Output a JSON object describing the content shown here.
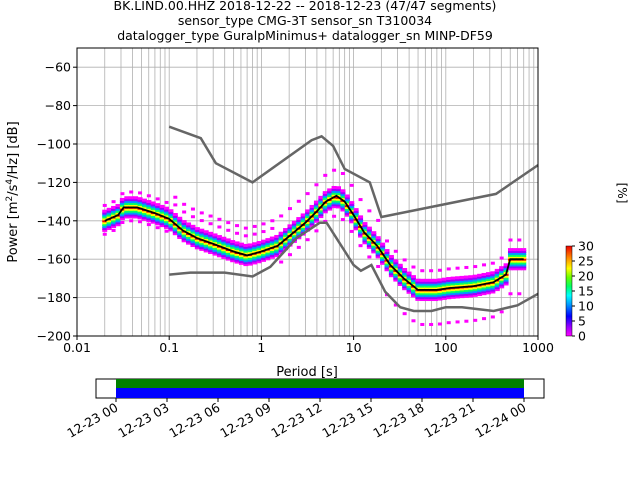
{
  "chart_data": {
    "type": "heatmap",
    "title_lines": [
      "BK.LIND.00.HHZ   2018-12-22 -- 2018-12-23  (47/47 segments)",
      "sensor_type CMG-3T sensor_sn T310034",
      "datalogger_type GuralpMinimus+ datalogger_sn MINP-DF59"
    ],
    "xlabel": "Period [s]",
    "ylabel_prefix": "Power [m",
    "ylabel_mid": "/s",
    "ylabel_mid2": "/Hz] [dB]",
    "ylabel_sup1": "2",
    "ylabel_sup2": "4",
    "xscale": "log",
    "xlim": [
      0.01,
      1000
    ],
    "ylim": [
      -200,
      -50
    ],
    "x_ticks": [
      {
        "value": 0.01,
        "label": "0.01"
      },
      {
        "value": 0.1,
        "label": "0.1"
      },
      {
        "value": 1,
        "label": "1"
      },
      {
        "value": 10,
        "label": "10"
      },
      {
        "value": 100,
        "label": "100"
      },
      {
        "value": 1000,
        "label": "1000"
      }
    ],
    "y_ticks": [
      -200,
      -180,
      -160,
      -140,
      -120,
      -100,
      -80,
      -60
    ],
    "grid": true,
    "colorbar": {
      "label": "[%]",
      "range": [
        0,
        30
      ],
      "ticks": [
        0,
        5,
        10,
        15,
        20,
        25,
        30
      ]
    },
    "noise_model_high": [
      {
        "x": 0.1,
        "y": -91
      },
      {
        "x": 0.22,
        "y": -97
      },
      {
        "x": 0.32,
        "y": -110
      },
      {
        "x": 0.8,
        "y": -120
      },
      {
        "x": 3.5,
        "y": -98
      },
      {
        "x": 4.5,
        "y": -96
      },
      {
        "x": 6.0,
        "y": -101
      },
      {
        "x": 8.0,
        "y": -113
      },
      {
        "x": 15,
        "y": -120
      },
      {
        "x": 20,
        "y": -138
      },
      {
        "x": 350,
        "y": -126
      },
      {
        "x": 1000,
        "y": -111
      }
    ],
    "noise_model_low": [
      {
        "x": 0.1,
        "y": -168
      },
      {
        "x": 0.17,
        "y": -167
      },
      {
        "x": 0.4,
        "y": -167
      },
      {
        "x": 0.8,
        "y": -169
      },
      {
        "x": 1.25,
        "y": -164
      },
      {
        "x": 2.4,
        "y": -149
      },
      {
        "x": 4.3,
        "y": -141
      },
      {
        "x": 5.1,
        "y": -141
      },
      {
        "x": 6.5,
        "y": -149
      },
      {
        "x": 10,
        "y": -163
      },
      {
        "x": 12,
        "y": -166
      },
      {
        "x": 15.6,
        "y": -163
      },
      {
        "x": 22,
        "y": -177
      },
      {
        "x": 32,
        "y": -185
      },
      {
        "x": 45,
        "y": -187
      },
      {
        "x": 70,
        "y": -187
      },
      {
        "x": 100,
        "y": -185
      },
      {
        "x": 150,
        "y": -185
      },
      {
        "x": 330,
        "y": -187
      },
      {
        "x": 600,
        "y": -184
      },
      {
        "x": 1000,
        "y": -178
      }
    ],
    "mode_curve": [
      {
        "x": 0.02,
        "y": -140
      },
      {
        "x": 0.028,
        "y": -137
      },
      {
        "x": 0.032,
        "y": -133
      },
      {
        "x": 0.045,
        "y": -133
      },
      {
        "x": 0.07,
        "y": -136
      },
      {
        "x": 0.1,
        "y": -139
      },
      {
        "x": 0.14,
        "y": -145
      },
      {
        "x": 0.2,
        "y": -149
      },
      {
        "x": 0.3,
        "y": -152
      },
      {
        "x": 0.5,
        "y": -156
      },
      {
        "x": 0.7,
        "y": -158
      },
      {
        "x": 1.0,
        "y": -156
      },
      {
        "x": 1.5,
        "y": -153
      },
      {
        "x": 2.0,
        "y": -148
      },
      {
        "x": 3.0,
        "y": -141
      },
      {
        "x": 4.0,
        "y": -135
      },
      {
        "x": 5.0,
        "y": -130
      },
      {
        "x": 6.5,
        "y": -127
      },
      {
        "x": 8.0,
        "y": -130
      },
      {
        "x": 10,
        "y": -137
      },
      {
        "x": 13,
        "y": -146
      },
      {
        "x": 18,
        "y": -153
      },
      {
        "x": 25,
        "y": -163
      },
      {
        "x": 35,
        "y": -170
      },
      {
        "x": 50,
        "y": -176
      },
      {
        "x": 80,
        "y": -176
      },
      {
        "x": 110,
        "y": -175
      },
      {
        "x": 200,
        "y": -174
      },
      {
        "x": 330,
        "y": -172
      },
      {
        "x": 450,
        "y": -168
      },
      {
        "x": 500,
        "y": -160
      },
      {
        "x": 700,
        "y": -160
      }
    ],
    "colors": {
      "mode_line": "#000000",
      "noise_models": "#666666",
      "scatter": "#ff00ff",
      "timeline_top": "#008000",
      "timeline_bottom": "#0000ff"
    },
    "timeline": {
      "tick_labels": [
        "12-23 00",
        "12-23 03",
        "12-23 06",
        "12-23 09",
        "12-23 12",
        "12-23 15",
        "12-23 18",
        "12-23 21",
        "12-24 00"
      ]
    }
  }
}
